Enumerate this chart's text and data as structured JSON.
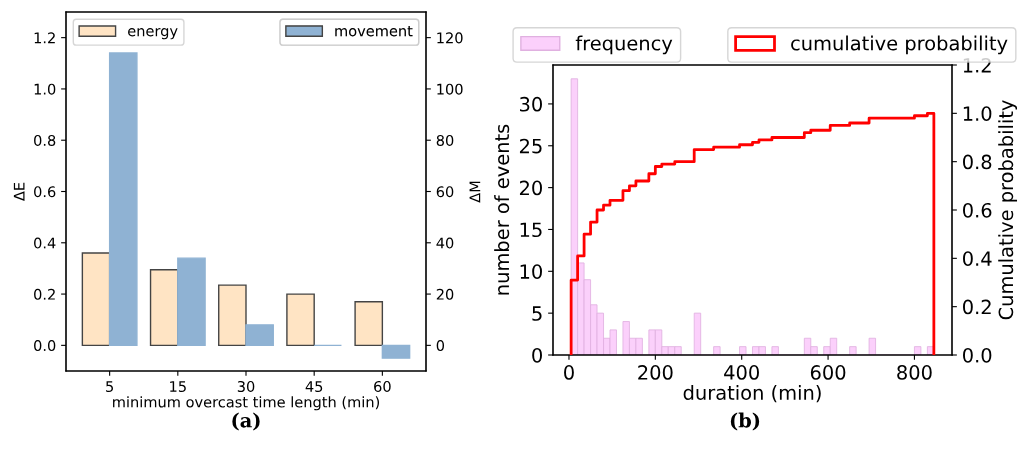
{
  "chart_data": [
    {
      "type": "bar",
      "categories": [
        "5",
        "15",
        "30",
        "45",
        "60"
      ],
      "xlabel": "minimum overcast time length (min)",
      "ylabel": "ΔE",
      "y2label": "ΔM",
      "series": [
        {
          "name": "energy",
          "color": "#ffe4c4",
          "values": [
            0.36,
            0.295,
            0.235,
            0.2,
            0.17
          ]
        },
        {
          "name": "movement",
          "color": "#8fb2d3",
          "axis": "y2",
          "values": [
            114,
            34,
            8,
            0,
            -5
          ]
        }
      ],
      "ylim": [
        -0.1,
        1.3
      ],
      "yticks": [
        {
          "value": 0,
          "label": "0.0"
        },
        {
          "value": 0.2,
          "label": "0.2"
        },
        {
          "value": 0.4,
          "label": "0.4"
        },
        {
          "value": 0.6,
          "label": "0.6"
        },
        {
          "value": 0.8,
          "label": "0.8"
        },
        {
          "value": 1.0,
          "label": "1.0"
        },
        {
          "value": 1.2,
          "label": "1.2"
        }
      ],
      "y2lim": [
        -10,
        130
      ],
      "y2ticks": [
        0,
        20,
        40,
        60,
        80,
        100,
        120
      ],
      "legend": "top",
      "grid": false,
      "annotations": [
        "(a)"
      ]
    },
    {
      "type": "histogram",
      "xlabel": "duration (min)",
      "ylabel": "number of events",
      "y2label": "Cumulative probability",
      "bins": [
        5,
        20,
        35,
        50,
        65,
        80,
        95,
        110,
        125,
        140,
        155,
        170,
        185,
        200,
        215,
        230,
        245,
        260,
        275,
        290,
        305,
        320,
        335,
        350,
        365,
        380,
        395,
        410,
        425,
        440,
        455,
        470,
        485,
        500,
        515,
        530,
        545,
        560,
        575,
        590,
        605,
        620,
        635,
        650,
        665,
        680,
        695,
        710,
        725,
        740,
        755,
        770,
        785,
        800,
        815,
        830,
        845
      ],
      "series": [
        {
          "name": "frequency",
          "type": "histogram",
          "color": "#fbd0fb",
          "values": [
            33,
            11,
            9,
            6,
            5,
            2,
            3,
            0,
            4,
            2,
            2,
            0,
            3,
            3,
            1,
            1,
            1,
            0,
            0,
            5,
            0,
            0,
            1,
            0,
            0,
            0,
            1,
            0,
            1,
            1,
            0,
            1,
            0,
            0,
            0,
            0,
            2,
            1,
            0,
            1,
            2,
            0,
            0,
            1,
            0,
            0,
            2,
            0,
            0,
            0,
            0,
            0,
            0,
            1,
            0,
            1
          ]
        },
        {
          "name": "cumulative probability",
          "type": "step",
          "axis": "y2",
          "color": "#ff0000",
          "x": [
            5,
            5,
            20,
            35,
            50,
            65,
            80,
            95,
            110,
            125,
            140,
            155,
            170,
            185,
            200,
            215,
            230,
            245,
            260,
            275,
            290,
            305,
            320,
            335,
            350,
            365,
            380,
            395,
            410,
            425,
            440,
            455,
            470,
            485,
            500,
            515,
            530,
            545,
            560,
            575,
            590,
            605,
            620,
            635,
            650,
            665,
            680,
            695,
            710,
            725,
            740,
            755,
            770,
            785,
            800,
            815,
            830,
            845
          ],
          "values": [
            0,
            0.31,
            0.41,
            0.5,
            0.55,
            0.6,
            0.62,
            0.64,
            0.64,
            0.68,
            0.7,
            0.72,
            0.72,
            0.75,
            0.78,
            0.79,
            0.79,
            0.8,
            0.8,
            0.8,
            0.85,
            0.85,
            0.85,
            0.86,
            0.86,
            0.86,
            0.86,
            0.87,
            0.87,
            0.88,
            0.89,
            0.89,
            0.9,
            0.9,
            0.9,
            0.9,
            0.9,
            0.92,
            0.93,
            0.93,
            0.93,
            0.95,
            0.95,
            0.95,
            0.96,
            0.96,
            0.96,
            0.98,
            0.98,
            0.98,
            0.98,
            0.98,
            0.98,
            0.98,
            0.99,
            0.99,
            1.0,
            0
          ]
        }
      ],
      "xlim": [
        -37,
        887
      ],
      "xticks": [
        0,
        200,
        400,
        600,
        800
      ],
      "ylim": [
        0,
        34.65
      ],
      "yticks": [
        0,
        5,
        10,
        15,
        20,
        25,
        30
      ],
      "y2lim": [
        0,
        1.2
      ],
      "y2ticks": [
        {
          "value": 0,
          "label": "0.0"
        },
        {
          "value": 0.2,
          "label": "0.2"
        },
        {
          "value": 0.4,
          "label": "0.4"
        },
        {
          "value": 0.6,
          "label": "0.6"
        },
        {
          "value": 0.8,
          "label": "0.8"
        },
        {
          "value": 1.0,
          "label": "1.0"
        },
        {
          "value": 1.2,
          "label": "1.2"
        }
      ],
      "legend": "top",
      "grid": false,
      "annotations": [
        "(b)"
      ]
    }
  ]
}
